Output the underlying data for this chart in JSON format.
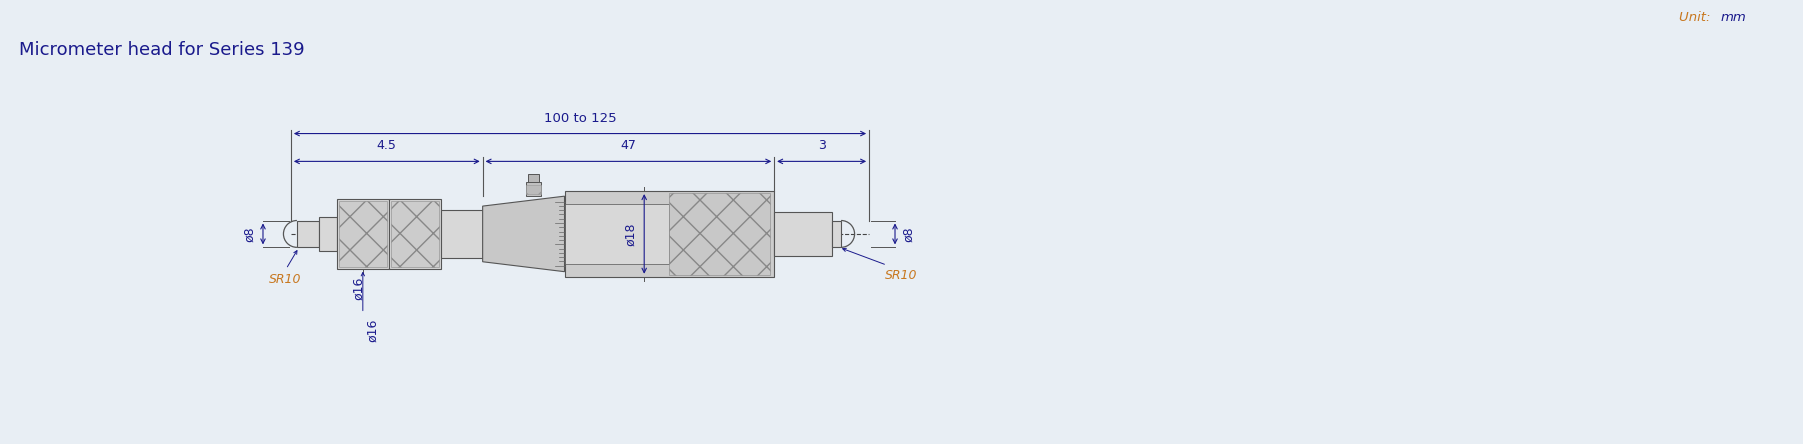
{
  "title": "Micrometer head for Series 139",
  "title_color": "#1a1a8c",
  "title_fontsize": 13,
  "unit_color_orange": "#c87820",
  "unit_color_blue": "#1a1a8c",
  "bg_color": "#e8eef4",
  "dim_color": "#1a1a8c",
  "body_fill": "#d8d8d8",
  "body_edge": "#555555",
  "dims": {
    "total_label": "100 to 125",
    "left_label": "4.5",
    "right_label": "3",
    "mid_label": "47",
    "left_dia_label": "ø8",
    "barrel_dia_label": "ø16",
    "right_dia_label": "ø18",
    "tip_dia_label": "ø8",
    "left_sr": "SR10",
    "right_sr": "SR10"
  }
}
